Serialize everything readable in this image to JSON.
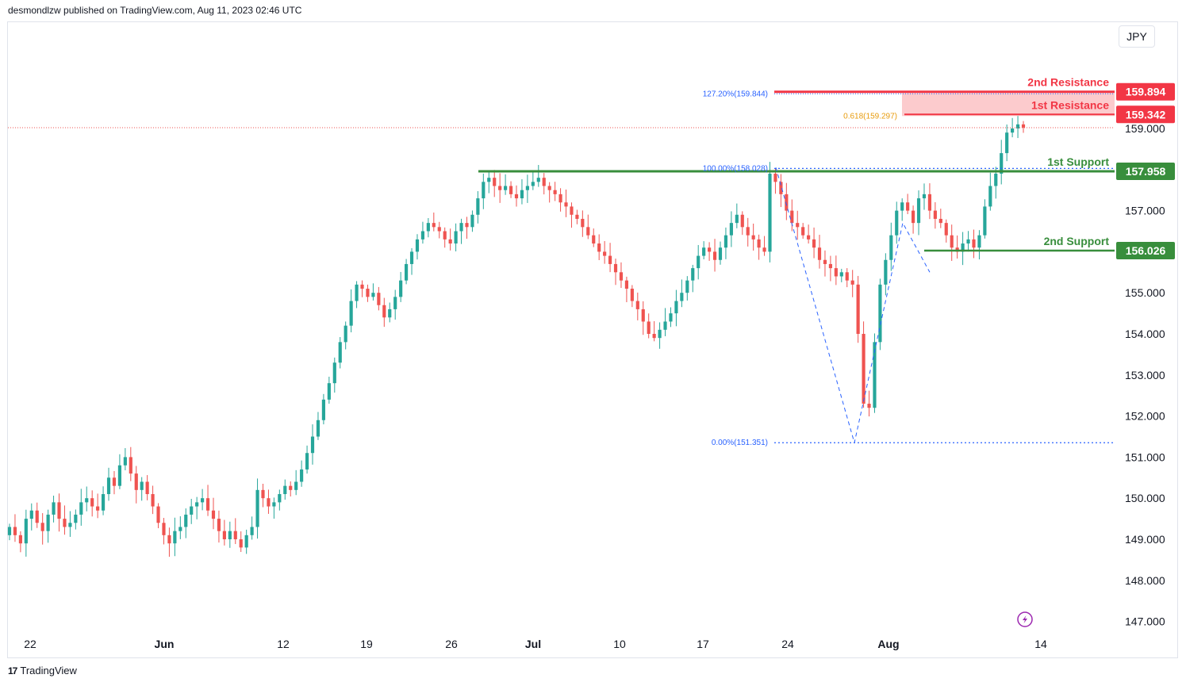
{
  "header": {
    "publisher_text": "desmondlzw published on TradingView.com, Aug 11, 2023 02:46 UTC"
  },
  "currency_button": "JPY",
  "footer": {
    "logo_mark": "17",
    "brand": "TradingView"
  },
  "colors": {
    "up": "#26a69a",
    "down": "#ef5350",
    "resistance": "#f23645",
    "resistance_zone": "#fccbcd",
    "support": "#388e3c",
    "fib_blue": "#2962ff",
    "fib_gold": "#e89c0e",
    "alert": "#9c27b0"
  },
  "alert_icon": "lightning-icon",
  "chart_data": {
    "type": "candlestick",
    "y_axis": {
      "ticks": [
        "147.000",
        "148.000",
        "149.000",
        "150.000",
        "151.000",
        "152.000",
        "153.000",
        "154.000",
        "155.000",
        "156.000",
        "157.000",
        "158.000",
        "159.000"
      ],
      "range": [
        146.7,
        160.05
      ]
    },
    "x_axis": {
      "ticks": [
        "22",
        "Jun",
        "12",
        "19",
        "26",
        "Jul",
        "10",
        "17",
        "24",
        "Aug",
        "14"
      ]
    },
    "levels": [
      {
        "name": "2nd Resistance",
        "price": 159.894,
        "tag": "159.894",
        "kind": "resistance"
      },
      {
        "name": "1st Resistance",
        "price": 159.342,
        "tag": "159.342",
        "kind": "resistance"
      },
      {
        "name": "1st Support",
        "price": 157.958,
        "tag": "157.958",
        "kind": "support"
      },
      {
        "name": "2nd Support",
        "price": 156.026,
        "tag": "156.026",
        "kind": "support"
      }
    ],
    "fib_labels": [
      {
        "text": "127.20%(159.844)",
        "price": 159.844,
        "color": "blue"
      },
      {
        "text": "0.618(159.297)",
        "price": 159.297,
        "color": "gold"
      },
      {
        "text": "100.00%(158.028)",
        "price": 158.028,
        "color": "blue"
      },
      {
        "text": "0.00%(151.351)",
        "price": 151.351,
        "color": "blue"
      }
    ],
    "last_price": 159.02,
    "closes": [
      149.3,
      149.1,
      148.9,
      149.5,
      149.7,
      149.4,
      149.2,
      149.6,
      149.9,
      149.5,
      149.3,
      149.4,
      149.6,
      149.9,
      150.0,
      149.8,
      149.7,
      150.1,
      150.5,
      150.3,
      150.8,
      151.0,
      150.6,
      150.2,
      150.4,
      150.1,
      149.8,
      149.4,
      149.1,
      148.9,
      149.2,
      149.3,
      149.6,
      149.8,
      149.9,
      150.0,
      149.7,
      149.5,
      149.2,
      149.0,
      149.2,
      149.0,
      148.8,
      149.1,
      149.3,
      150.2,
      150.0,
      149.8,
      149.9,
      150.1,
      150.3,
      150.2,
      150.4,
      150.7,
      151.1,
      151.5,
      151.9,
      152.4,
      152.8,
      153.3,
      153.8,
      154.2,
      154.8,
      155.2,
      155.1,
      154.9,
      155.0,
      154.7,
      154.4,
      154.6,
      154.9,
      155.3,
      155.7,
      156.0,
      156.3,
      156.5,
      156.7,
      156.6,
      156.5,
      156.3,
      156.2,
      156.5,
      156.7,
      156.6,
      156.9,
      157.3,
      157.7,
      157.8,
      157.6,
      157.5,
      157.6,
      157.4,
      157.3,
      157.5,
      157.6,
      157.7,
      157.8,
      157.6,
      157.5,
      157.4,
      157.2,
      157.1,
      156.9,
      156.8,
      156.6,
      156.4,
      156.2,
      156.0,
      155.9,
      155.7,
      155.5,
      155.3,
      155.1,
      154.8,
      154.6,
      154.3,
      154.0,
      153.9,
      154.1,
      154.3,
      154.5,
      154.8,
      155.0,
      155.3,
      155.6,
      155.9,
      156.1,
      156.0,
      155.8,
      156.1,
      156.4,
      156.7,
      156.9,
      156.6,
      156.4,
      156.3,
      156.1,
      156.0,
      157.9,
      157.7,
      157.4,
      157.0,
      156.7,
      156.6,
      156.4,
      156.3,
      156.1,
      155.8,
      155.7,
      155.6,
      155.4,
      155.5,
      155.3,
      155.2,
      154.0,
      152.3,
      152.2,
      153.8,
      155.2,
      155.8,
      156.4,
      157.0,
      157.2,
      157.0,
      156.7,
      157.3,
      157.4,
      157.0,
      156.8,
      156.7,
      156.4,
      156.1,
      156.0,
      156.2,
      156.3,
      156.1,
      156.4,
      157.1,
      157.6,
      157.9,
      158.4,
      158.9,
      159.0,
      159.1,
      159.02
    ]
  }
}
